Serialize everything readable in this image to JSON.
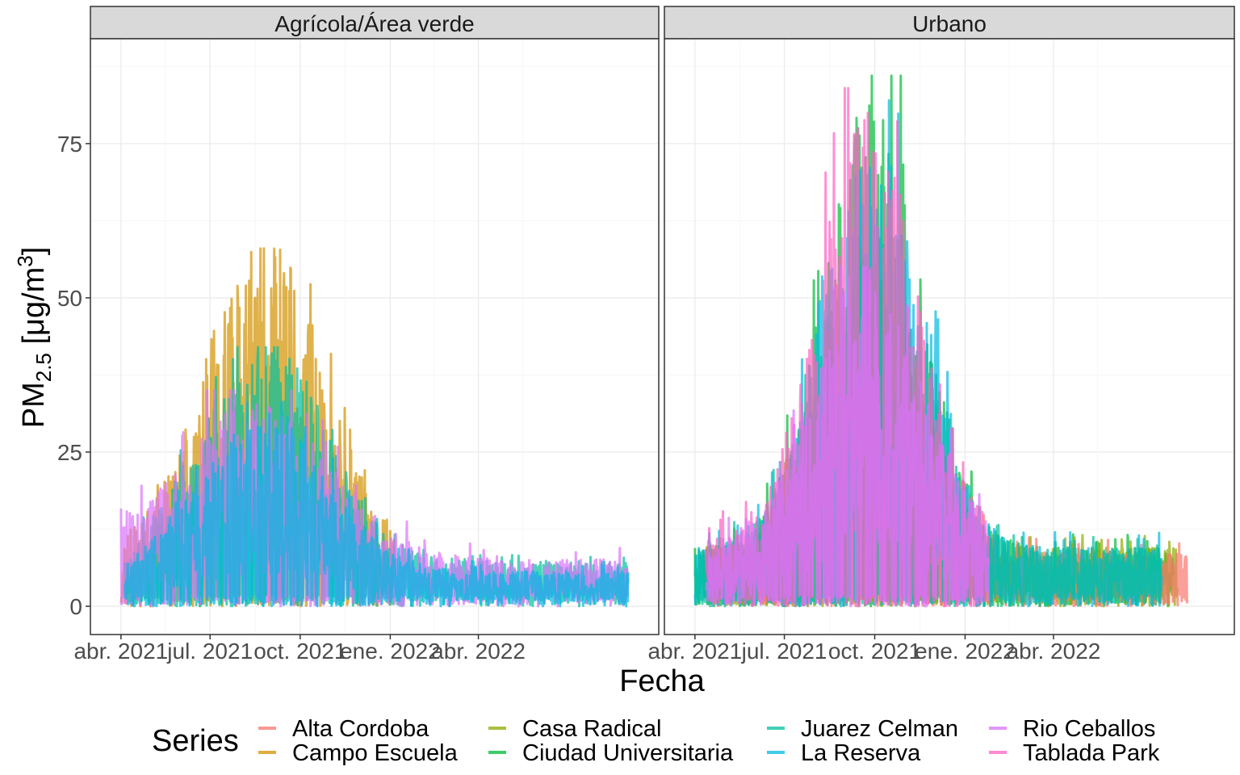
{
  "chart_data": {
    "type": "line",
    "ylabel_main": "PM",
    "ylabel_sub": "2.5",
    "ylabel_unit_open": " [μg/m",
    "ylabel_unit_sup": "3",
    "ylabel_unit_close": "]",
    "xlabel": "Fecha",
    "ylim": [
      0,
      90
    ],
    "y_ticks": [
      0,
      25,
      50,
      75
    ],
    "x_range": [
      "2021-03-28",
      "2022-09-05"
    ],
    "x_ticks": [
      {
        "date": "2021-04-01",
        "label": "abr. 2021"
      },
      {
        "date": "2021-07-01",
        "label": "jul. 2021"
      },
      {
        "date": "2021-10-01",
        "label": "oct. 2021"
      },
      {
        "date": "2022-01-01",
        "label": "ene. 2022"
      },
      {
        "date": "2022-04-01",
        "label": "abr. 2022"
      }
    ],
    "grid": true,
    "legend_position": "bottom",
    "legend_title": "Series",
    "series": [
      {
        "name": "Alta Cordoba",
        "color": "#F8766D"
      },
      {
        "name": "Campo Escuela",
        "color": "#D39200"
      },
      {
        "name": "Casa Radical",
        "color": "#93AA00"
      },
      {
        "name": "Ciudad Universitaria",
        "color": "#00BA38"
      },
      {
        "name": "Juarez Celman",
        "color": "#00C19F"
      },
      {
        "name": "La Reserva",
        "color": "#00B9E3"
      },
      {
        "name": "Rio Ceballos",
        "color": "#DB72FB"
      },
      {
        "name": "Tablada Park",
        "color": "#FF61C3"
      }
    ],
    "facets": [
      {
        "label": "Agrícola/Área verde",
        "series": [
          {
            "name": "Campo Escuela",
            "start": "2021-04-01",
            "end": "2022-01-05",
            "base": 8,
            "peak_day": 150,
            "peak": 58,
            "spread": 85,
            "noise": 0.9
          },
          {
            "name": "Juarez Celman",
            "start": "2021-04-05",
            "end": "2022-09-01",
            "base": 7,
            "peak_day": 150,
            "peak": 42,
            "spread": 90,
            "noise": 0.9
          },
          {
            "name": "Rio Ceballos",
            "start": "2021-04-01",
            "end": "2022-09-01",
            "base": 8,
            "peak_day": 140,
            "peak": 35,
            "spread": 110,
            "noise": 0.8
          },
          {
            "name": "La Reserva",
            "start": "2021-04-05",
            "end": "2022-09-01",
            "base": 6,
            "peak_day": 150,
            "peak": 33,
            "spread": 90,
            "noise": 0.8
          }
        ]
      },
      {
        "label": "Urbano",
        "series": [
          {
            "name": "Ciudad Universitaria",
            "start": "2021-04-01",
            "end": "2022-08-01",
            "base": 10,
            "peak_day": 185,
            "peak": 86,
            "spread": 70,
            "noise": 0.8
          },
          {
            "name": "Casa Radical",
            "start": "2021-04-10",
            "end": "2022-08-05",
            "base": 10,
            "peak_day": 185,
            "peak": 58,
            "spread": 70,
            "noise": 0.8
          },
          {
            "name": "Alta Cordoba",
            "start": "2021-04-15",
            "end": "2022-08-15",
            "base": 9,
            "peak_day": 180,
            "peak": 52,
            "spread": 75,
            "noise": 0.8
          },
          {
            "name": "La Reserva",
            "start": "2021-04-01",
            "end": "2022-07-20",
            "base": 10,
            "peak_day": 185,
            "peak": 82,
            "spread": 70,
            "noise": 0.8
          },
          {
            "name": "Juarez Celman",
            "start": "2021-04-01",
            "end": "2022-07-20",
            "base": 10,
            "peak_day": 180,
            "peak": 60,
            "spread": 75,
            "noise": 0.8
          },
          {
            "name": "Tablada Park",
            "start": "2021-04-12",
            "end": "2022-01-25",
            "base": 12,
            "peak_day": 180,
            "peak": 84,
            "spread": 70,
            "noise": 0.8
          },
          {
            "name": "Rio Ceballos",
            "start": "2021-04-12",
            "end": "2022-01-25",
            "base": 10,
            "peak_day": 180,
            "peak": 55,
            "spread": 80,
            "noise": 0.8
          }
        ]
      }
    ]
  }
}
